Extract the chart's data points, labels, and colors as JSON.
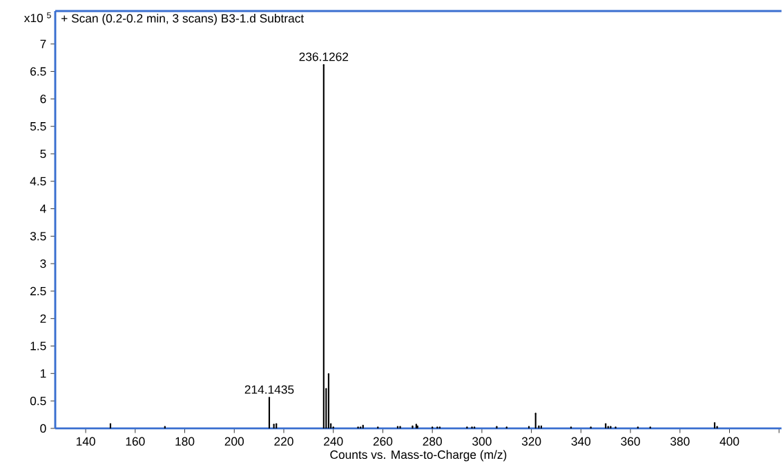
{
  "chart_data": {
    "type": "lollipop",
    "title": "+ Scan (0.2-0.2 min, 3 scans) B3-1.d  Subtract",
    "xlabel": "Counts vs. Mass-to-Charge (m/z)",
    "ylabel": "x10 $^{5}$",
    "x": [
      150,
      172,
      214.1435,
      216,
      217,
      236.1262,
      237.1,
      238.1,
      239,
      240,
      250,
      251,
      252,
      258,
      266,
      267,
      272,
      273.5,
      274,
      280,
      282,
      283,
      294,
      296,
      297,
      306,
      310,
      319,
      321.7,
      323,
      324,
      336,
      344,
      350,
      351,
      352,
      354,
      363,
      368,
      394,
      395
    ],
    "series": [
      {
        "color": "#000000",
        "values": [
          0.08,
          0.03,
          0.56,
          0.07,
          0.08,
          6.62,
          0.72,
          0.99,
          0.08,
          0.02,
          0.02,
          0.02,
          0.05,
          0.02,
          0.03,
          0.03,
          0.04,
          0.07,
          0.04,
          0.02,
          0.02,
          0.02,
          0.02,
          0.02,
          0.02,
          0.03,
          0.02,
          0.03,
          0.27,
          0.04,
          0.04,
          0.02,
          0.02,
          0.08,
          0.03,
          0.03,
          0.02,
          0.02,
          0.02,
          0.1,
          0.03
        ]
      }
    ],
    "annotations": [
      {
        "text": "214.1435",
        "x": 214.1435,
        "y": 0.56
      },
      {
        "text": "236.1262",
        "x": 236.1262,
        "y": 6.62
      }
    ],
    "xlim": [
      127.7,
      421
    ],
    "ylim": [
      0,
      7.6
    ],
    "xticks": [
      140,
      160,
      180,
      200,
      220,
      240,
      260,
      280,
      300,
      320,
      340,
      360,
      380,
      400,
      {
        "value": 420,
        "label": null
      }
    ],
    "yticks": [
      0,
      0.5,
      1,
      1.5,
      2,
      2.5,
      3,
      3.5,
      4,
      4.5,
      5,
      5.5,
      6,
      6.5,
      7
    ]
  }
}
